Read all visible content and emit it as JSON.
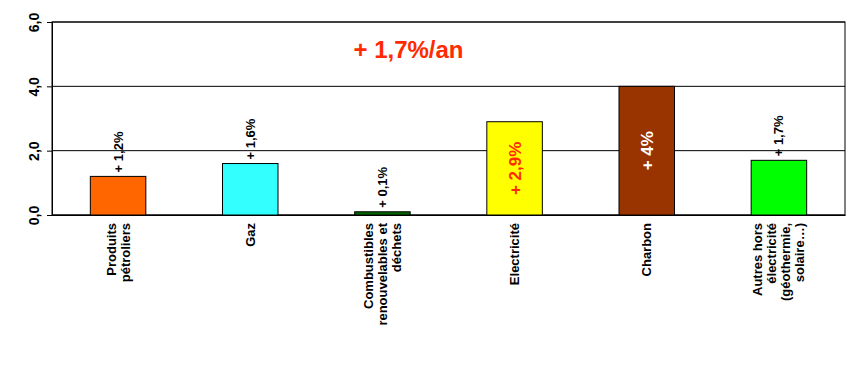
{
  "chart_data": {
    "type": "bar",
    "title": "+ 1,7%/an",
    "categories": [
      "Produits\npétroliers",
      "Gaz",
      "Combustibles\nrenouvelables et\ndéchets",
      "Electricité",
      "Charbon",
      "Autres hors\nélectricité\n(géothermie,\nsolaire…)"
    ],
    "values": [
      1.2,
      1.6,
      0.1,
      2.9,
      4.0,
      1.7
    ],
    "value_labels": [
      "+ 1,2%",
      "+ 1,6%",
      "+ 0,1%",
      "+ 2,9%",
      "+ 4%",
      "+ 1,7%"
    ],
    "colors": [
      "#ff6600",
      "#33ffff",
      "#006600",
      "#ffff00",
      "#993300",
      "#00ff00"
    ],
    "ylim": [
      0,
      6
    ],
    "yticks": [
      {
        "value": 0,
        "label": "0,0"
      },
      {
        "value": 2,
        "label": "2,0"
      },
      {
        "value": 4,
        "label": "4,0"
      },
      {
        "value": 6,
        "label": "6,0"
      }
    ],
    "grid": true,
    "data_labels": true
  }
}
